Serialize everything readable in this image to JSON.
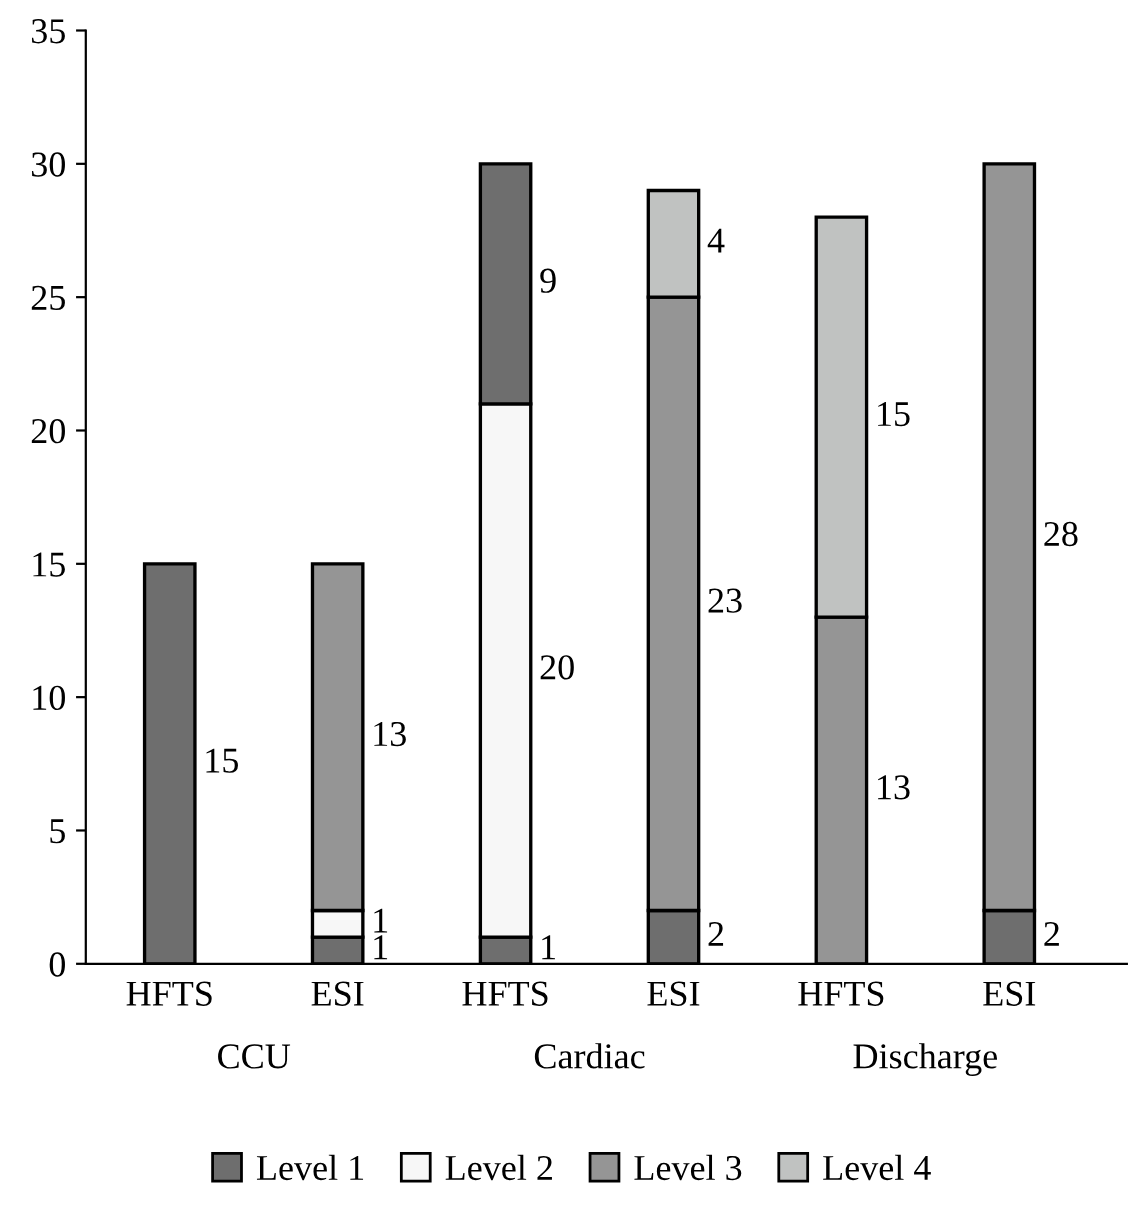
{
  "chart_data": {
    "type": "bar",
    "stacked": true,
    "categories": [
      "HFTS",
      "ESI",
      "HFTS",
      "ESI",
      "HFTS",
      "ESI"
    ],
    "annotations": [
      "CCU",
      "Cardiac",
      "Discharge"
    ],
    "series": [
      {
        "name": "Level 1",
        "color": "#6e6e6e",
        "values": [
          15,
          1,
          1,
          2,
          null,
          2
        ]
      },
      {
        "name": "Level 2",
        "color": "#f7f7f7",
        "values": [
          null,
          1,
          20,
          null,
          null,
          null
        ]
      },
      {
        "name": "Level 3",
        "color": "#959595",
        "values": [
          null,
          13,
          null,
          23,
          13,
          28
        ]
      },
      {
        "name": "Level 4",
        "color": "#c0c2c1",
        "values": [
          null,
          null,
          null,
          4,
          15,
          null
        ]
      },
      {
        "color": "#6e6e6e",
        "values": [
          null,
          null,
          9,
          null,
          null,
          null
        ]
      }
    ],
    "ylim": [
      0,
      35
    ],
    "yticks": [
      0,
      5,
      10,
      15,
      20,
      25,
      30,
      35
    ],
    "grid": false,
    "legend": "bottom",
    "data_labels": true
  }
}
